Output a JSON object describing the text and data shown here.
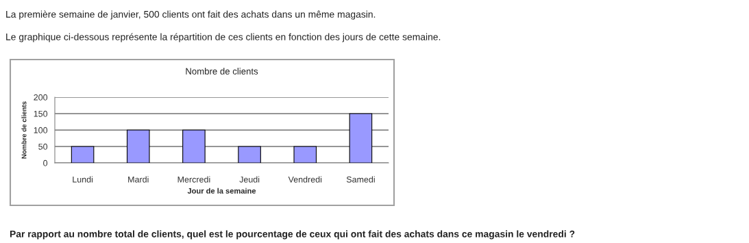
{
  "chart_data": {
    "type": "bar",
    "title": "Nombre de clients",
    "xlabel": "Jour de la semaine",
    "ylabel": "Nombre de clients",
    "categories": [
      "Lundi",
      "Mardi",
      "Mercredi",
      "Jeudi",
      "Vendredi",
      "Samedi"
    ],
    "values": [
      50,
      100,
      100,
      50,
      50,
      150
    ],
    "color": "#9999ff",
    "ylim": [
      0,
      200
    ],
    "yticks": [
      0,
      50,
      100,
      150,
      200
    ],
    "grid": "y",
    "annotations": [
      "La première semaine de janvier, 500 clients ont fait des achats dans un même magasin.",
      "Le graphique ci-dessous représente la répartition de ces clients en fonction des jours de cette semaine.",
      "Par rapport au nombre total de clients, quel est le pourcentage de ceux qui ont fait des achats dans ce magasin le vendredi ?"
    ]
  }
}
